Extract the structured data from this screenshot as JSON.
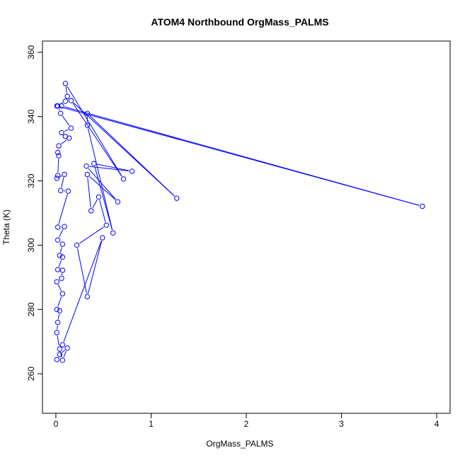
{
  "chart_data": {
    "type": "line",
    "title": "ATOM4 Northbound OrgMass_PALMS",
    "xlabel": "OrgMass_PALMS",
    "ylabel": "Theta (K)",
    "xlim": [
      -0.141,
      4.141
    ],
    "ylim": [
      247.7,
      363.5
    ],
    "xticks": [
      "0",
      "1",
      "2",
      "3",
      "4"
    ],
    "yticks": [
      "260",
      "280",
      "300",
      "320",
      "340",
      "360"
    ],
    "grid": false,
    "color": "#0000ff",
    "points": [
      [
        0.01,
        264.4
      ],
      [
        0.04,
        266.0
      ],
      [
        0.12,
        268.0
      ],
      [
        0.07,
        264.2
      ],
      [
        0.04,
        267.7
      ],
      [
        0.01,
        272.8
      ],
      [
        0.02,
        276.0
      ],
      [
        0.04,
        279.6
      ],
      [
        0.01,
        280.0
      ],
      [
        0.07,
        284.9
      ],
      [
        0.01,
        288.6
      ],
      [
        0.06,
        289.7
      ],
      [
        0.07,
        292.2
      ],
      [
        0.02,
        292.4
      ],
      [
        0.07,
        296.3
      ],
      [
        0.04,
        296.8
      ],
      [
        0.07,
        300.3
      ],
      [
        0.02,
        301.6
      ],
      [
        0.09,
        305.8
      ],
      [
        0.02,
        305.6
      ],
      [
        0.13,
        316.8
      ],
      [
        0.05,
        317.0
      ],
      [
        0.09,
        322.0
      ],
      [
        0.01,
        320.8
      ],
      [
        0.02,
        321.7
      ],
      [
        0.03,
        327.8
      ],
      [
        0.02,
        328.8
      ],
      [
        0.03,
        330.9
      ],
      [
        0.14,
        333.3
      ],
      [
        0.1,
        333.8
      ],
      [
        0.06,
        335.0
      ],
      [
        0.16,
        336.4
      ],
      [
        0.05,
        341.0
      ],
      [
        0.02,
        343.3
      ],
      [
        0.06,
        343.3
      ],
      [
        3.85,
        312.1
      ],
      [
        0.01,
        343.3
      ],
      [
        0.1,
        344.8
      ],
      [
        0.12,
        346.3
      ],
      [
        0.1,
        350.3
      ],
      [
        0.71,
        320.6
      ],
      [
        0.16,
        345.0
      ],
      [
        1.27,
        314.6
      ],
      [
        0.33,
        341.0
      ],
      [
        0.33,
        337.3
      ],
      [
        0.6,
        303.8
      ],
      [
        0.4,
        325.4
      ],
      [
        0.8,
        323.0
      ],
      [
        0.32,
        324.6
      ],
      [
        0.65,
        313.5
      ],
      [
        0.33,
        322.0
      ],
      [
        0.37,
        310.7
      ],
      [
        0.45,
        315.0
      ],
      [
        0.53,
        306.2
      ],
      [
        0.22,
        300.0
      ],
      [
        0.33,
        284.0
      ],
      [
        0.49,
        302.3
      ],
      [
        0.07,
        269.0
      ]
    ]
  }
}
